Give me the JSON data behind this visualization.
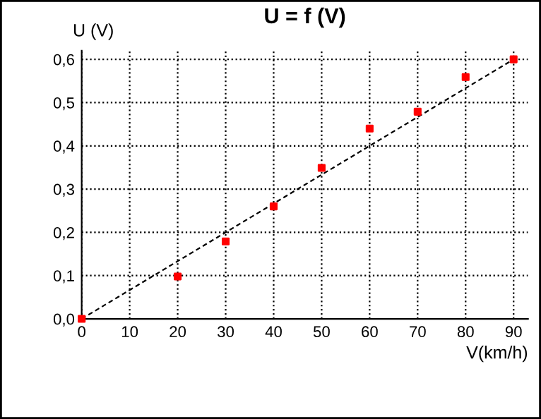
{
  "chart_data": {
    "type": "scatter",
    "title": "U = f (V)",
    "xlabel": "V(km/h)",
    "ylabel": "U (V)",
    "x": [
      0,
      20,
      30,
      40,
      50,
      60,
      70,
      80,
      90
    ],
    "series": [
      {
        "color": "#ff0000",
        "values": [
          0,
          0.098,
          0.179,
          0.26,
          0.349,
          0.44,
          0.479,
          0.559,
          0.6
        ]
      },
      {
        "type": "line",
        "color": "#000000",
        "x": [
          0,
          90
        ],
        "values": [
          0,
          0.6
        ],
        "line_style": "dashed",
        "marker": "none"
      }
    ],
    "marker": "square",
    "xlim": [
      0,
      93
    ],
    "ylim": [
      0,
      0.62
    ],
    "xticks": [
      0,
      10,
      20,
      30,
      40,
      50,
      60,
      70,
      80,
      90
    ],
    "yticks": [
      {
        "value": 0,
        "label": "0,0"
      },
      {
        "value": 0.1,
        "label": "0,1"
      },
      {
        "value": 0.2,
        "label": "0,2"
      },
      {
        "value": 0.3,
        "label": "0,3"
      },
      {
        "value": 0.4,
        "label": "0,4"
      },
      {
        "value": 0.5,
        "label": "0,5"
      },
      {
        "value": 0.6,
        "label": "0,6"
      }
    ],
    "grid": true,
    "legend": false
  }
}
